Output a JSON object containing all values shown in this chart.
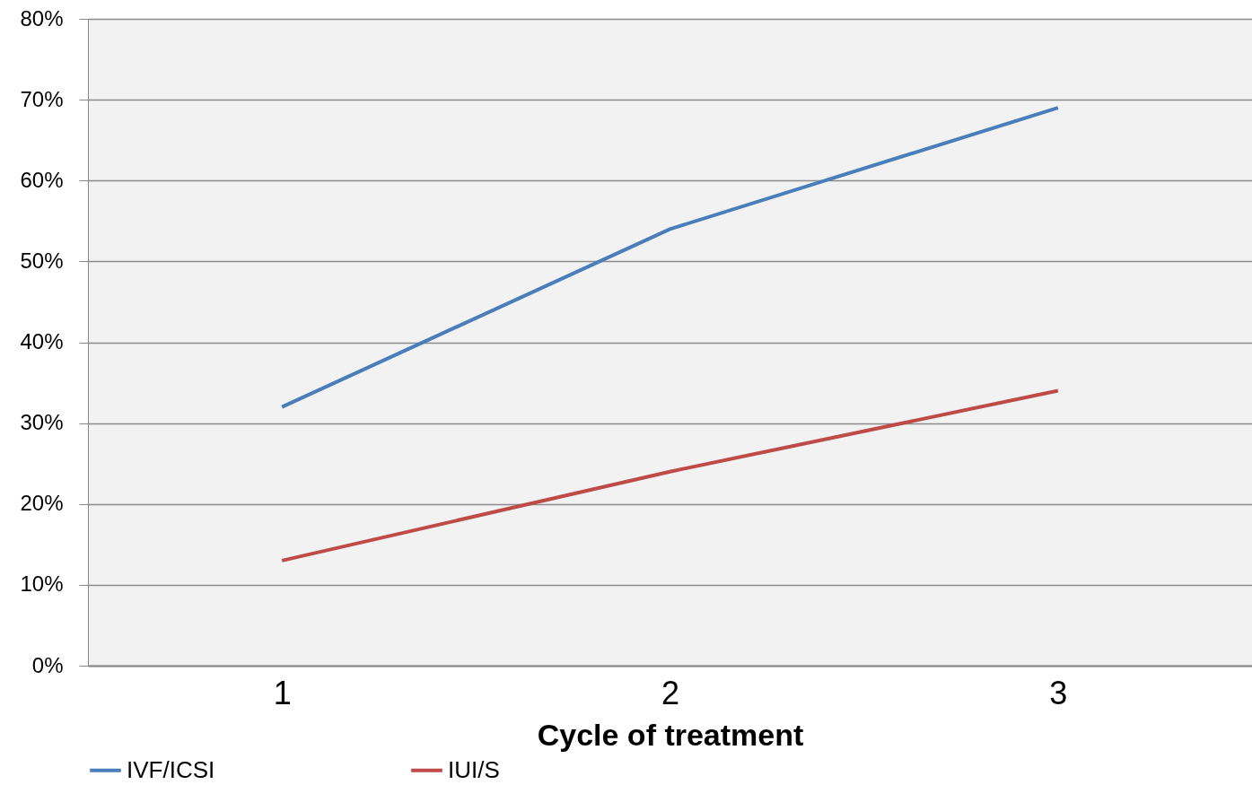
{
  "chart_data": {
    "type": "line",
    "xlabel": "Cycle of treatment",
    "categories": [
      "1",
      "2",
      "3"
    ],
    "series": [
      {
        "name": "IVF/ICSI",
        "color": "#4a7ebb",
        "values": [
          32,
          54,
          69
        ]
      },
      {
        "name": "IUI/S",
        "color": "#be4b48",
        "values": [
          13,
          24,
          34
        ]
      }
    ],
    "ylim": [
      0,
      80
    ],
    "yticks": [
      {
        "value": 0,
        "label": "0%"
      },
      {
        "value": 10,
        "label": "10%"
      },
      {
        "value": 20,
        "label": "20%"
      },
      {
        "value": 30,
        "label": "30%"
      },
      {
        "value": 40,
        "label": "40%"
      },
      {
        "value": 50,
        "label": "50%"
      },
      {
        "value": 60,
        "label": "60%"
      },
      {
        "value": 70,
        "label": "70%"
      },
      {
        "value": 80,
        "label": "80%"
      }
    ],
    "grid": "y",
    "legend": "bottom",
    "marker": "none",
    "line_style": "solid"
  }
}
